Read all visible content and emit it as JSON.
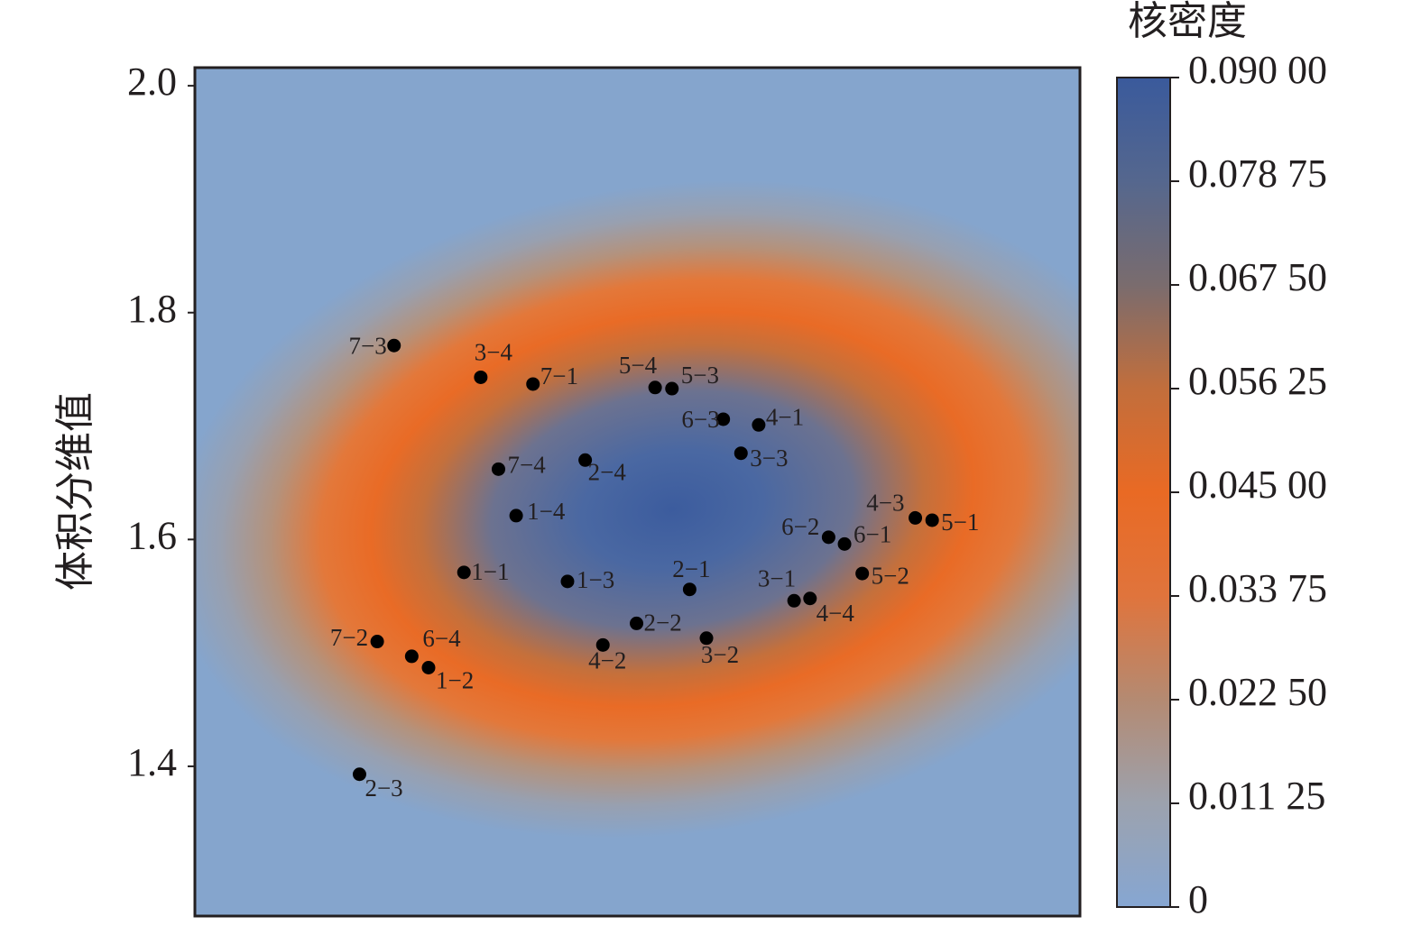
{
  "chart_data": {
    "type": "scatter",
    "y_label": "体积分维值",
    "ylim": [
      1.268,
      2.016
    ],
    "yticks": [
      1.4,
      1.6,
      1.8,
      {
        "value": 2.0,
        "label": "2.0"
      }
    ],
    "xlim": [
      0,
      1
    ],
    "color": "#000000",
    "point_labels": [
      "7−3",
      "3−4",
      "7−1",
      "5−4",
      "5−3",
      "6−3",
      "4−1",
      "3−3",
      "7−4",
      "2−4",
      "1−4",
      "6−2",
      "6−1",
      "4−3",
      "5−1",
      "1−1",
      "1−3",
      "2−1",
      "5−2",
      "3−1",
      "4−4",
      "7−2",
      "6−4",
      "1−2",
      "2−2",
      "4−2",
      "3−2",
      "2−3"
    ],
    "x": [
      0.225,
      0.323,
      0.382,
      0.52,
      0.539,
      0.597,
      0.637,
      0.617,
      0.343,
      0.441,
      0.363,
      0.716,
      0.734,
      0.814,
      0.833,
      0.304,
      0.421,
      0.559,
      0.754,
      0.677,
      0.695,
      0.206,
      0.245,
      0.264,
      0.499,
      0.461,
      0.578,
      0.186
    ],
    "values": [
      1.771,
      1.743,
      1.737,
      1.734,
      1.733,
      1.706,
      1.701,
      1.676,
      1.662,
      1.67,
      1.621,
      1.602,
      1.596,
      1.619,
      1.617,
      1.571,
      1.563,
      1.556,
      1.57,
      1.546,
      1.548,
      1.51,
      1.497,
      1.487,
      1.526,
      1.507,
      1.513,
      1.393
    ],
    "colorbar": {
      "title": "核密度",
      "lim": [
        0,
        0.09
      ],
      "ticks": [
        0,
        {
          "value": 0.01125,
          "label": "0.011 25"
        },
        {
          "value": 0.0225,
          "label": "0.022 50"
        },
        {
          "value": 0.03375,
          "label": "0.033 75"
        },
        {
          "value": 0.045,
          "label": "0.045 00"
        },
        {
          "value": 0.05625,
          "label": "0.056 25"
        },
        {
          "value": 0.0675,
          "label": "0.067 50"
        },
        {
          "value": 0.07875,
          "label": "0.078 75"
        },
        {
          "value": 0.09,
          "label": "0.090 00"
        }
      ]
    }
  }
}
